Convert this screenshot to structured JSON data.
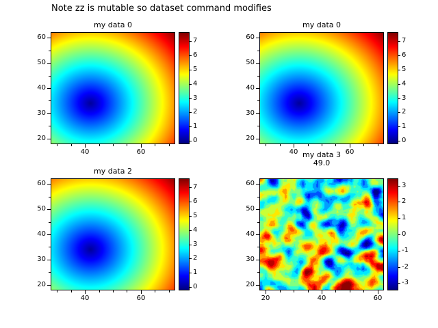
{
  "page_title": "Note zz is mutable so dataset command modifies",
  "chart_data": [
    {
      "type": "heatmap",
      "title": "my data 0",
      "subtitle": "",
      "xlim": [
        28,
        72
      ],
      "ylim": [
        18,
        62
      ],
      "xticks": [
        40,
        60
      ],
      "yticks": [
        20,
        30,
        40,
        50,
        60
      ],
      "colormap": "jet",
      "colorbar": {
        "range": [
          -0.2,
          7.6
        ],
        "ticks": [
          0,
          1,
          2,
          3,
          4,
          5,
          6,
          7
        ]
      },
      "field": {
        "kind": "radial",
        "center": [
          42,
          34
        ],
        "scale": 5.5,
        "description": "smooth bowl: value = distance from center / scale; 0 (dark blue) at center, ~7.5 (red) at far top-right corner"
      }
    },
    {
      "type": "heatmap",
      "title": "my data 0",
      "subtitle": "",
      "xlim": [
        28,
        72
      ],
      "ylim": [
        18,
        62
      ],
      "xticks": [
        40,
        60
      ],
      "yticks": [
        20,
        30,
        40,
        50,
        60
      ],
      "colormap": "jet",
      "colorbar": {
        "range": [
          -0.2,
          7.6
        ],
        "ticks": [
          0,
          1,
          2,
          3,
          4,
          5,
          6,
          7
        ]
      },
      "field": {
        "kind": "radial",
        "center": [
          42,
          34
        ],
        "scale": 5.5,
        "description": "identical smooth bowl field as first panel"
      }
    },
    {
      "type": "heatmap",
      "title": "my data 2",
      "subtitle": "",
      "xlim": [
        28,
        72
      ],
      "ylim": [
        18,
        62
      ],
      "xticks": [
        40,
        60
      ],
      "yticks": [
        20,
        30,
        40,
        50,
        60
      ],
      "colormap": "jet",
      "colorbar": {
        "range": [
          -0.2,
          7.6
        ],
        "ticks": [
          0,
          1,
          2,
          3,
          4,
          5,
          6,
          7
        ]
      },
      "field": {
        "kind": "radial",
        "center": [
          42,
          34
        ],
        "scale": 5.5,
        "description": "identical smooth bowl field as first panel"
      }
    },
    {
      "type": "heatmap",
      "title": "my data 3",
      "subtitle": "49.0",
      "xlim": [
        18,
        62
      ],
      "ylim": [
        18,
        62
      ],
      "xticks": [
        20,
        40,
        60
      ],
      "yticks": [
        20,
        30,
        40,
        50,
        60
      ],
      "colormap": "jet",
      "colorbar": {
        "range": [
          -3.4,
          3.4
        ],
        "ticks": [
          -3,
          -2,
          -1,
          0,
          1,
          2,
          3
        ]
      },
      "field": {
        "kind": "noise",
        "seed": 7,
        "grid": 44,
        "std": 1.3,
        "amplitude": 3.3,
        "posterize": 0.5,
        "description": "random speckled field, mean ~0, mostly green with yellow/orange patches and sparse blue dots, values within about ±3"
      }
    }
  ]
}
